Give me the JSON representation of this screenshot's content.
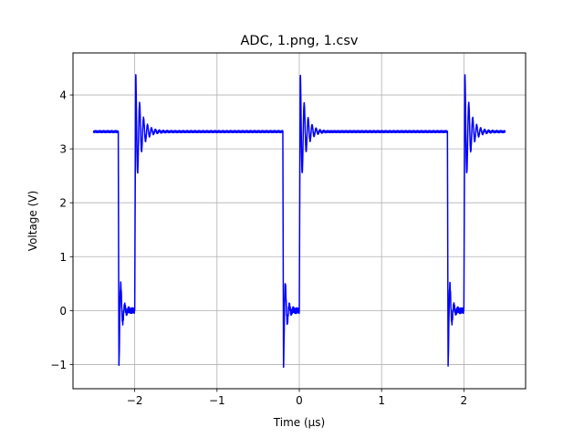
{
  "chart_data": {
    "type": "line",
    "title": "ADC, 1.png, 1.csv",
    "xlabel": "Time (µs)",
    "ylabel": "Voltage (V)",
    "xlim": [
      -2.75,
      2.75
    ],
    "ylim": [
      -1.45,
      4.78
    ],
    "xticks": [
      -2,
      -1,
      0,
      1,
      2
    ],
    "xtick_labels": [
      "−2",
      "−1",
      "0",
      "1",
      "2"
    ],
    "yticks": [
      -1,
      0,
      1,
      2,
      3,
      4
    ],
    "ytick_labels": [
      "−1",
      "0",
      "1",
      "2",
      "3",
      "4"
    ],
    "grid": true,
    "line_color": "#0000ff",
    "series": [
      {
        "color": "#0000ff",
        "high_level": 3.32,
        "low_level": 0.0,
        "period": 2.0,
        "range": [
          -2.5,
          2.5
        ],
        "falling_edges": [
          -2.2,
          -0.2,
          1.8
        ],
        "rising_edges": [
          -2.0,
          0.0,
          2.0
        ],
        "undershoot_min": -1.15,
        "overshoot_max": 4.45
      }
    ]
  }
}
